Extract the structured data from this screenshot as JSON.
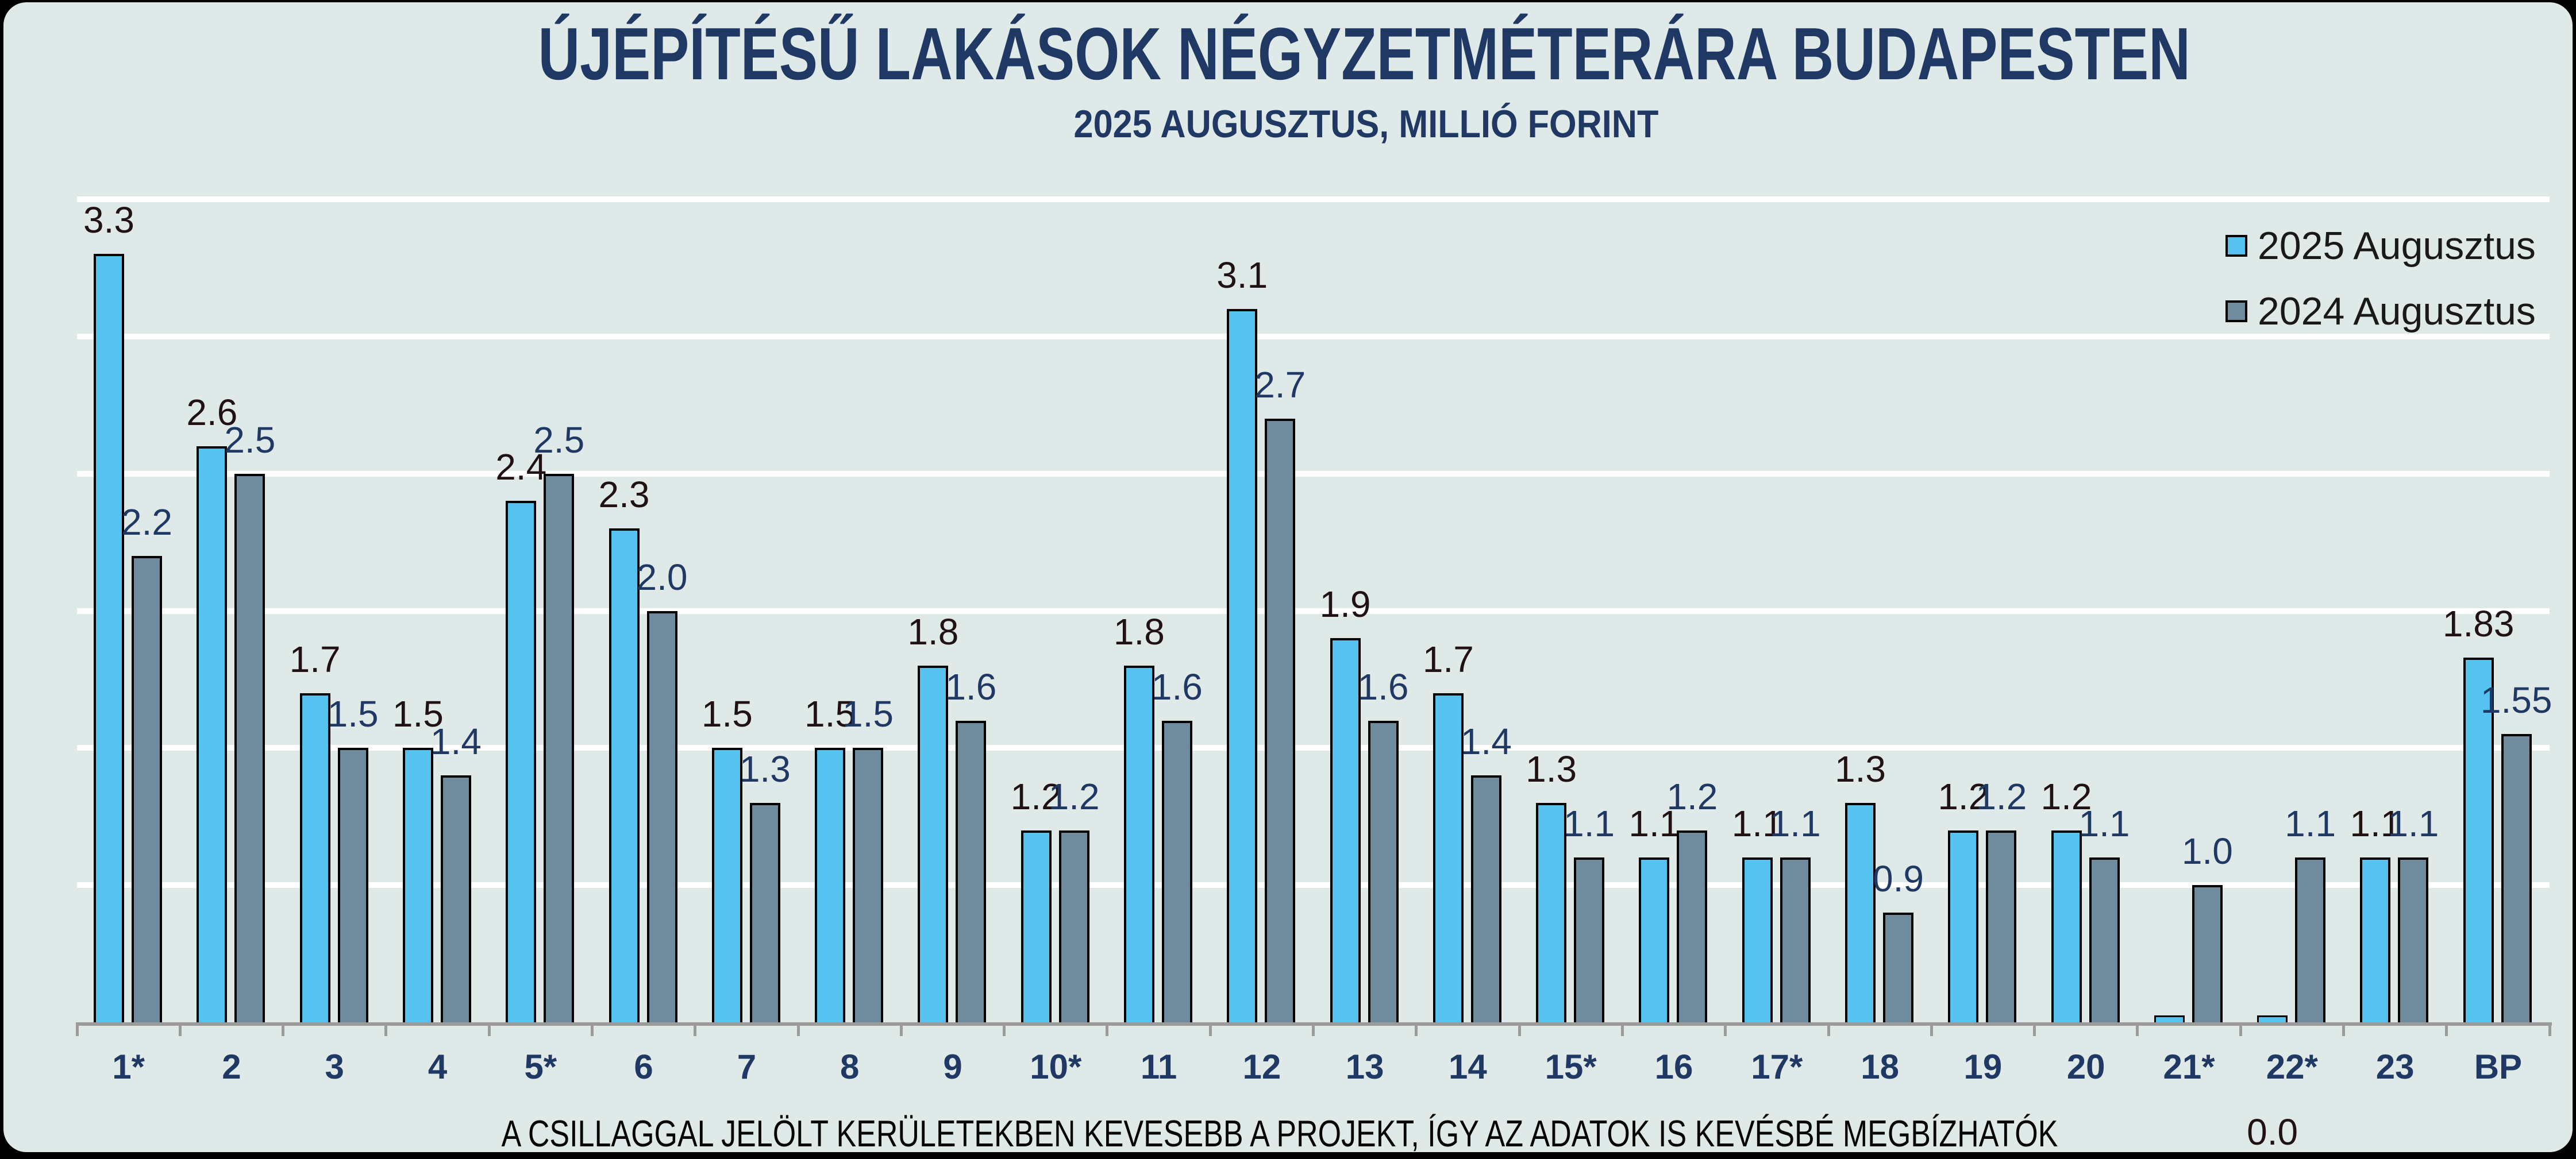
{
  "chart": {
    "title": "ÚJÉPÍTÉSŰ LAKÁSOK NÉGYZETMÉTERÁRA BUDAPESTEN",
    "subtitle": "2025 AUGUSZTUS, MILLIÓ FORINT",
    "footnote": "A CSILLAGGAL JELÖLT KERÜLETEKBEN KEVESEBB A PROJEKT, ÍGY AZ ADATOK IS KEVÉSBÉ MEGBÍZHATÓK",
    "colors": {
      "background_panel": "#dfe9e8",
      "outer_frame": "#000000",
      "title_navy": "#1f3864",
      "bar_2025_blue": "#56c2f0",
      "bar_2024_gray": "#6e8c9d",
      "axis_gray": "#9b9b9b",
      "gridline_white": "#ffffff",
      "label_2025": "#201113",
      "label_2024": "#1f3864",
      "legend_text": "#191919"
    }
  },
  "chart_data": {
    "type": "bar",
    "title": "ÚJÉPÍTÉSŰ LAKÁSOK NÉGYZETMÉTERÁRA BUDAPESTEN",
    "subtitle": "2025 AUGUSZTUS, MILLIÓ FORINT",
    "categories": [
      "1*",
      "2",
      "3",
      "4",
      "5*",
      "6",
      "7",
      "8",
      "9",
      "10*",
      "11",
      "12",
      "13",
      "14",
      "15*",
      "16",
      "17*",
      "18",
      "19",
      "20",
      "21*",
      "22*",
      "23",
      "BP"
    ],
    "series": [
      {
        "name": "2025 Augusztus",
        "color": "#56c2f0",
        "values": [
          3.3,
          2.6,
          1.7,
          1.5,
          2.4,
          2.3,
          1.5,
          1.5,
          1.8,
          1.2,
          1.8,
          3.1,
          1.9,
          1.7,
          1.3,
          1.1,
          1.1,
          1.3,
          1.2,
          1.2,
          0.0,
          0.0,
          1.1,
          1.83
        ],
        "labels": [
          "3.3",
          "2.6",
          "1.7",
          "1.5",
          "2.4",
          "2.3",
          "1.5",
          "1.5",
          "1.8",
          "1.2",
          "1.8",
          "3.1",
          "1.9",
          "1.7",
          "1.3",
          "1.1",
          "1.1",
          "1.3",
          "1.2",
          "1.2",
          "",
          "0.0",
          "1.1",
          "1.83"
        ]
      },
      {
        "name": "2024 Augusztus",
        "color": "#6e8c9d",
        "values": [
          2.2,
          2.5,
          1.5,
          1.4,
          2.5,
          2.0,
          1.3,
          1.5,
          1.6,
          1.2,
          1.6,
          2.7,
          1.6,
          1.4,
          1.1,
          1.2,
          1.1,
          0.9,
          1.2,
          1.1,
          1.0,
          1.1,
          1.1,
          1.55
        ],
        "labels": [
          "2.2",
          "2.5",
          "1.5",
          "1.4",
          "2.5",
          "2.0",
          "1.3",
          "1.5",
          "1.6",
          "1.2",
          "1.6",
          "2.7",
          "1.6",
          "1.4",
          "1.1",
          "1.2",
          "1.1",
          "0.9",
          "1.2",
          "1.1",
          "1.0",
          "1.1",
          "1.1",
          "1.55"
        ]
      }
    ],
    "ylim": [
      0.5,
      3.5
    ],
    "gridline_interval": 0.5,
    "grid": "horizontal white lines",
    "legend_position": "top-right",
    "ylabel": "",
    "xlabel": ""
  }
}
